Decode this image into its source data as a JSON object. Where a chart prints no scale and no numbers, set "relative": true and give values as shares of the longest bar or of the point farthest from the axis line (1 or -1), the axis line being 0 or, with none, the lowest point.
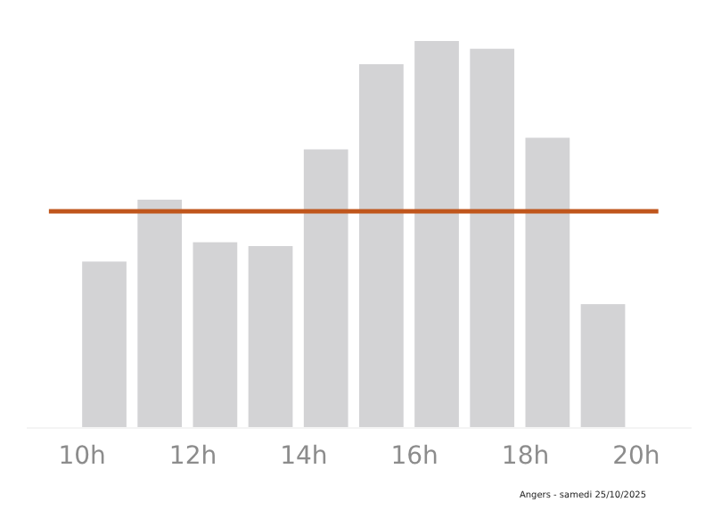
{
  "chart_data": {
    "type": "bar",
    "relative": true,
    "x": [
      10.4,
      11.4,
      12.4,
      13.4,
      14.4,
      15.4,
      16.4,
      17.4,
      18.4,
      19.4
    ],
    "values": [
      0.43,
      0.59,
      0.48,
      0.47,
      0.72,
      0.94,
      1,
      0.98,
      0.75,
      0.32
    ],
    "color": "#d3d3d5",
    "xlim": [
      9,
      21
    ],
    "xticks": [
      {
        "value": 10,
        "label": "10h"
      },
      {
        "value": 12,
        "label": "12h"
      },
      {
        "value": 14,
        "label": "14h"
      },
      {
        "value": 16,
        "label": "16h"
      },
      {
        "value": 18,
        "label": "18h"
      },
      {
        "value": 20,
        "label": "20h"
      }
    ],
    "ref_lines": [
      {
        "axis": "y",
        "value": 0.56,
        "label": null,
        "color": "#c0561c"
      }
    ],
    "annotations": [
      "Angers - samedi 25/10/2025"
    ]
  }
}
